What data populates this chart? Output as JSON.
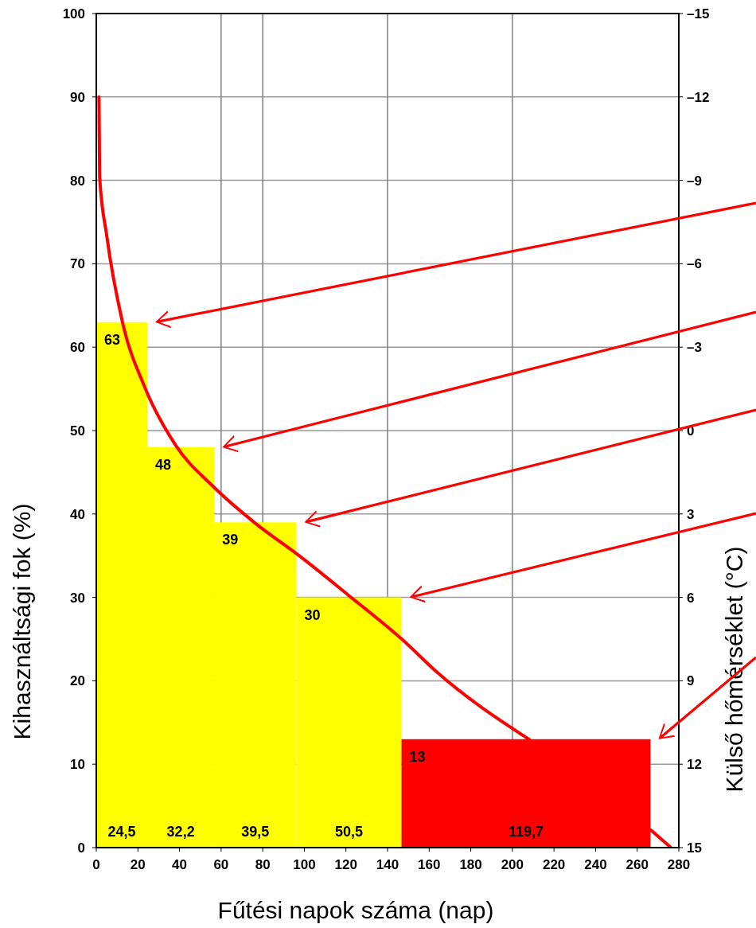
{
  "chart_data": {
    "type": "histogram",
    "xlabel": "Fűtési napok száma (nap)",
    "ylabel": "Kihasználtsági fok (%)",
    "y2label": "Külső hőmérséklet (°C)",
    "bins": [
      0,
      24.5,
      56.7,
      96.2,
      146.7,
      266.4
    ],
    "values": [
      63,
      48,
      39,
      30,
      13
    ],
    "colors": [
      "#ffff00",
      "#ffff00",
      "#ffff00",
      "#ffff00",
      "#ff0000"
    ],
    "value_labels": [
      "63",
      "48",
      "39",
      "30",
      "13"
    ],
    "series": [
      {
        "type": "line",
        "color": "#ff0000",
        "x": [
          1.3,
          1.6,
          5,
          12.5,
          23.3,
          38,
          56.6,
          76.4,
          97.5,
          121,
          147.7,
          163,
          208.5,
          230,
          266.6,
          275.8
        ],
        "values": [
          90,
          80.5,
          73.4,
          63.1,
          55.2,
          48.3,
          43.2,
          38.9,
          35,
          30.3,
          24.8,
          21.2,
          12.9,
          null,
          2.1,
          0.1
        ]
      }
    ],
    "annotations": [
      "24,5",
      "32,2",
      "39,5",
      "50,5",
      "119,7"
    ],
    "xlim": [
      0,
      280
    ],
    "xticks": [
      0,
      20,
      40,
      60,
      80,
      100,
      120,
      140,
      160,
      180,
      200,
      220,
      240,
      260,
      280
    ],
    "ylim": [
      0,
      100
    ],
    "yticks": [
      0,
      10,
      20,
      30,
      40,
      50,
      60,
      70,
      80,
      90,
      100
    ],
    "y2lim": [
      15,
      -15
    ],
    "y2ticks": [
      {
        "value": -15,
        "label": "–15"
      },
      {
        "value": -12,
        "label": "–12"
      },
      {
        "value": -9,
        "label": "–9"
      },
      {
        "value": -6,
        "label": "–6"
      },
      {
        "value": -3,
        "label": "–3"
      },
      0,
      3,
      6,
      9,
      12,
      15
    ],
    "grid": "y",
    "ref_lines": [
      {
        "axis": "x",
        "value": 60,
        "color": "#808080"
      },
      {
        "axis": "x",
        "value": 80,
        "color": "#808080"
      },
      {
        "axis": "x",
        "value": 140,
        "color": "#808080"
      },
      {
        "axis": "x",
        "value": 200,
        "color": "#808080"
      }
    ]
  }
}
